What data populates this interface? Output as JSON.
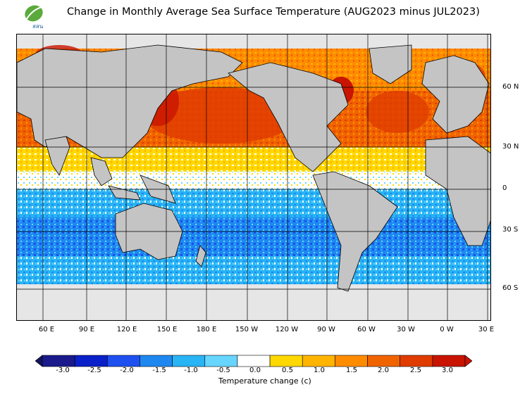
{
  "title": "Change in Monthly Average Sea Surface Temperature (AUG2023 minus JUL2023)",
  "logo": {
    "text": "สสน",
    "icon": "leaf-logo-icon"
  },
  "map": {
    "lat_labels": [
      "60 N",
      "30 N",
      "0",
      "30 S",
      "60 S"
    ],
    "lon_labels": [
      "60 E",
      "90 E",
      "120 E",
      "150 E",
      "180 E",
      "150 W",
      "120 W",
      "90 W",
      "60 W",
      "30 W",
      "0 W",
      "30 E"
    ]
  },
  "colorbar": {
    "title": "Temperature change  (c)",
    "tick_labels": [
      "-3.0",
      "-2.5",
      "-2.0",
      "-1.5",
      "-1.0",
      "-0.5",
      "0.0",
      "0.5",
      "1.0",
      "1.5",
      "2.0",
      "2.5",
      "3.0"
    ],
    "colors": [
      "#1a1a8c",
      "#0a20c8",
      "#1e50f0",
      "#1e88f0",
      "#28b4f5",
      "#66d6ff",
      "#ffffff",
      "#ffd800",
      "#ffb400",
      "#ff8c00",
      "#f06400",
      "#e03c00",
      "#c81400"
    ]
  }
}
